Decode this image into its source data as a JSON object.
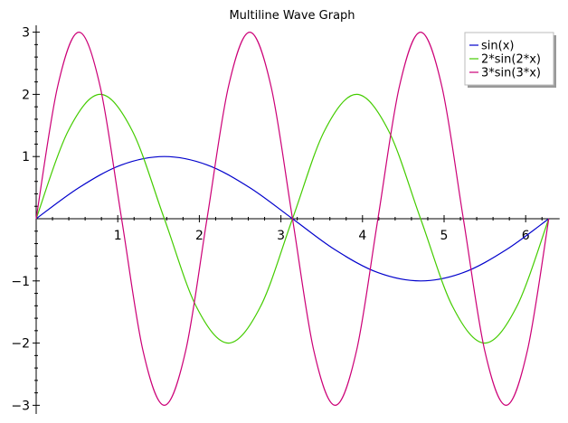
{
  "chart_data": {
    "type": "line",
    "title": "Multiline Wave Graph",
    "xlabel": "",
    "ylabel": "",
    "xlim": [
      0,
      6.283
    ],
    "ylim": [
      -3,
      3
    ],
    "x_ticks": [
      1,
      2,
      3,
      4,
      5,
      6
    ],
    "x_tick_labels": [
      "1",
      "2",
      "3",
      "4",
      "5",
      "6"
    ],
    "y_ticks": [
      -3,
      -2,
      -1,
      1,
      2,
      3
    ],
    "y_tick_labels": [
      "−3",
      "−2",
      "−1",
      "1",
      "2",
      "3"
    ],
    "grid": false,
    "legend_position": "top-right",
    "series": [
      {
        "name": "sin(x)",
        "color": "#0000cc",
        "x": [
          0,
          0.524,
          1.047,
          1.571,
          2.094,
          2.618,
          3.142,
          3.665,
          4.189,
          4.712,
          5.236,
          5.76,
          6.283
        ],
        "values": [
          0,
          0.5,
          0.866,
          1,
          0.866,
          0.5,
          0,
          -0.5,
          -0.866,
          -1,
          -0.866,
          -0.5,
          0
        ]
      },
      {
        "name": "2*sin(2*x)",
        "color": "#44cc00",
        "x": [
          0,
          0.393,
          0.785,
          1.178,
          1.571,
          1.963,
          2.356,
          2.749,
          3.142,
          3.534,
          3.927,
          4.32,
          4.712,
          5.105,
          5.498,
          5.89,
          6.283
        ],
        "values": [
          0,
          1.414,
          2,
          1.414,
          0,
          -1.414,
          -2,
          -1.414,
          0,
          1.414,
          2,
          1.414,
          0,
          -1.414,
          -2,
          -1.414,
          0
        ]
      },
      {
        "name": "3*sin(3*x)",
        "color": "#cc0077",
        "x": [
          0,
          0.262,
          0.524,
          0.785,
          1.047,
          1.309,
          1.571,
          1.833,
          2.094,
          2.356,
          2.618,
          2.88,
          3.142,
          3.403,
          3.665,
          3.927,
          4.189,
          4.451,
          4.712,
          4.974,
          5.236,
          5.498,
          5.76,
          6.021,
          6.283
        ],
        "values": [
          0,
          2.121,
          3,
          2.121,
          0,
          -2.121,
          -3,
          -2.121,
          0,
          2.121,
          3,
          2.121,
          0,
          -2.121,
          -3,
          -2.121,
          0,
          2.121,
          3,
          2.121,
          0,
          -2.121,
          -3,
          -2.121,
          0
        ]
      }
    ]
  }
}
